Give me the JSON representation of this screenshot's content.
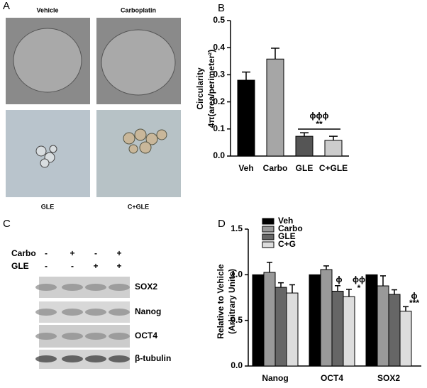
{
  "panel_labels": [
    "A",
    "B",
    "C",
    "D"
  ],
  "micrographs": {
    "labels": [
      "Vehicle",
      "Carboplatin",
      "GLE",
      "C+GLE"
    ]
  },
  "blot": {
    "rows": [
      {
        "name": "Carbo",
        "signs": [
          "-",
          "+",
          "-",
          "+"
        ]
      },
      {
        "name": "GLE",
        "signs": [
          "-",
          "-",
          "+",
          "+"
        ]
      }
    ],
    "bands": [
      "SOX2",
      "Nanog",
      "OCT4",
      "β-tubulin"
    ]
  },
  "chart_data": [
    {
      "type": "bar",
      "ylabel": [
        "Circularity",
        "4π(area/perimeter²)"
      ],
      "categories": [
        "Veh",
        "Carbo",
        "GLE",
        "C+GLE"
      ],
      "values": [
        0.28,
        0.358,
        0.073,
        0.058
      ],
      "errors": [
        0.03,
        0.04,
        0.013,
        0.015
      ],
      "colors": [
        "#000000",
        "#a6a6a6",
        "#555555",
        "#cccccc"
      ],
      "ylim": [
        0,
        0.5
      ],
      "yticks": [
        {
          "value": 0,
          "label": "0.0"
        },
        0.1,
        0.2,
        0.3,
        0.4,
        0.5
      ],
      "annotations": [
        {
          "text": "ϕϕϕ"
        },
        {
          "text": "**"
        }
      ]
    },
    {
      "type": "grouped_bar",
      "ylabel": [
        "Relative to Vehicle",
        "(Arbitrary Units)"
      ],
      "categories": [
        "Nanog",
        "OCT4",
        "SOX2"
      ],
      "series": [
        {
          "name": "Veh",
          "color": "#000000",
          "values": [
            1.0,
            1.0,
            1.0
          ],
          "errors": [
            0,
            0,
            0
          ]
        },
        {
          "name": "Carbo",
          "color": "#999999",
          "values": [
            1.026,
            1.057,
            0.878
          ],
          "errors": [
            0.11,
            0.04,
            0.11
          ]
        },
        {
          "name": "GLE",
          "color": "#666666",
          "values": [
            0.862,
            0.82,
            0.785
          ],
          "errors": [
            0.05,
            0.06,
            0.05
          ]
        },
        {
          "name": "C+G",
          "color": "#dddddd",
          "values": [
            0.8,
            0.76,
            0.6
          ],
          "errors": [
            0.09,
            0.08,
            0.05
          ]
        }
      ],
      "ylim": [
        0,
        1.5
      ],
      "yticks": [
        {
          "value": 0,
          "label": "0.0"
        },
        0.5,
        {
          "value": 1,
          "label": "1.0"
        },
        1.5
      ],
      "legend": "upper left",
      "annotations": [
        {
          "text": "ϕ"
        },
        {
          "text": "ϕϕ"
        },
        {
          "text": "*"
        },
        {
          "text": "ϕ"
        },
        {
          "text": "***"
        }
      ]
    }
  ]
}
